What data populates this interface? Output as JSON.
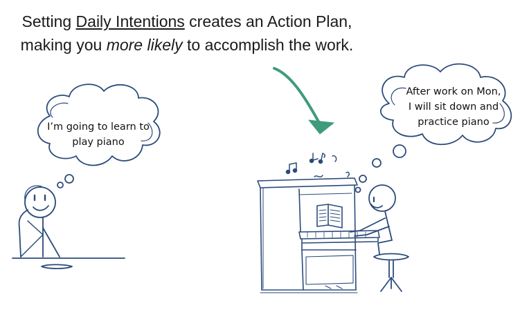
{
  "headline": {
    "line1_pre": "Setting ",
    "line1_underlined": "Daily Intentions",
    "line1_post": " creates an Action Plan,",
    "line2_pre": "making you ",
    "line2_italic": "more likely",
    "line2_post": " to accomplish the work."
  },
  "left_bubble": {
    "line1": "I’m going to learn to",
    "line2": "play piano"
  },
  "right_bubble": {
    "line1": "After work on Mon,",
    "line2": "I will sit down and",
    "line3": "practice piano"
  },
  "colors": {
    "ink": "#2b4a7a",
    "arrow": "#3f9b7e",
    "text": "#111111"
  }
}
